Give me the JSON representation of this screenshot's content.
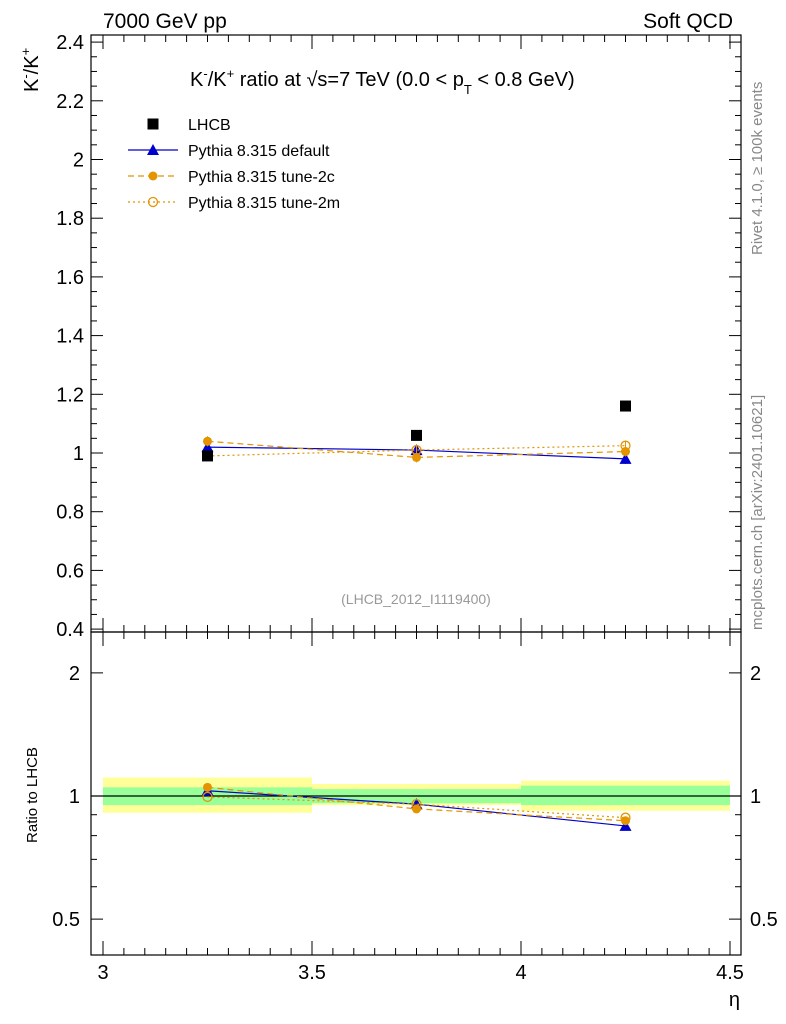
{
  "header": {
    "left": "7000 GeV pp",
    "right": "Soft QCD"
  },
  "side": {
    "rivet": "Rivet 4.1.0, ≥ 100k events",
    "mcplots": "mcplots.cern.ch [arXiv:2401.10621]"
  },
  "labels": {
    "analysis": "(LHCB_2012_I1119400)",
    "title_a": "K",
    "title_a_sup": "-",
    "title_b": "/K",
    "title_b_sup": "+",
    "title_c": " ratio at √s=7 TeV (0.0 < p",
    "title_c_sub": "T",
    "title_d": " < 0.8 GeV)",
    "ylabel_a": "K",
    "ylabel_a_sup": "-",
    "ylabel_b": "/K",
    "ylabel_b_sup": "+",
    "ratio_ylabel": "Ratio to LHCB",
    "xlabel": "η"
  },
  "legend": [
    {
      "name": "LHCB",
      "color": "#000000",
      "marker": "square",
      "line": "none"
    },
    {
      "name": "Pythia 8.315 default",
      "color": "#0000cc",
      "marker": "triangle",
      "line": "solid"
    },
    {
      "name": "Pythia 8.315 tune-2c",
      "color": "#e39400",
      "marker": "circle",
      "line": "dashed"
    },
    {
      "name": "Pythia 8.315 tune-2m",
      "color": "#e39400",
      "marker": "open-circle",
      "line": "dotted"
    }
  ],
  "chart_data": {
    "type": "scatter",
    "x": [
      3.25,
      3.75,
      4.25
    ],
    "bin_edges": [
      3.0,
      3.5,
      4.0,
      4.5
    ],
    "xlim": [
      3.0,
      4.5
    ],
    "xticks": [
      "3",
      "3.5",
      "4",
      "4.5"
    ],
    "ylim": [
      0.4,
      2.43
    ],
    "yticks": [
      "0.4",
      "0.6",
      "0.8",
      "1",
      "1.2",
      "1.4",
      "1.6",
      "1.8",
      "2",
      "2.2",
      "2.4"
    ],
    "series": [
      {
        "name": "LHCB",
        "values": [
          0.99,
          1.06,
          1.16
        ]
      },
      {
        "name": "Pythia 8.315 default",
        "values": [
          1.02,
          1.01,
          0.98
        ]
      },
      {
        "name": "Pythia 8.315 tune-2c",
        "values": [
          1.04,
          0.985,
          1.005
        ]
      },
      {
        "name": "Pythia 8.315 tune-2m",
        "values": [
          0.99,
          1.01,
          1.025
        ]
      }
    ],
    "ratio": {
      "ylabel": "Ratio to LHCB",
      "ylim": [
        0.38,
        2.45
      ],
      "scale": "log",
      "yticks": [
        "0.5",
        "1",
        "2"
      ],
      "band_inner": [
        [
          0.95,
          1.05
        ],
        [
          0.96,
          1.04
        ],
        [
          0.95,
          1.06
        ]
      ],
      "band_outer": [
        [
          0.91,
          1.11
        ],
        [
          0.95,
          1.07
        ],
        [
          0.92,
          1.09
        ]
      ],
      "series": [
        {
          "name": "Pythia 8.315 default",
          "values": [
            1.03,
            0.955,
            0.845
          ]
        },
        {
          "name": "Pythia 8.315 tune-2c",
          "values": [
            1.05,
            0.93,
            0.87
          ]
        },
        {
          "name": "Pythia 8.315 tune-2m",
          "values": [
            0.995,
            0.955,
            0.885
          ]
        }
      ]
    }
  }
}
